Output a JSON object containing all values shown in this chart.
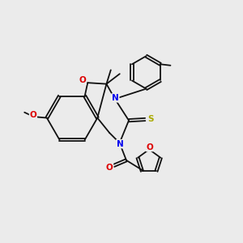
{
  "background_color": "#ebebeb",
  "figure_size": [
    3.0,
    3.0
  ],
  "dpi": 100,
  "colors": {
    "C": "#111111",
    "N": "#0000ee",
    "O": "#dd0000",
    "S": "#aaaa00"
  },
  "lw": 1.3,
  "dbo": 0.055,
  "fs": 7.5
}
